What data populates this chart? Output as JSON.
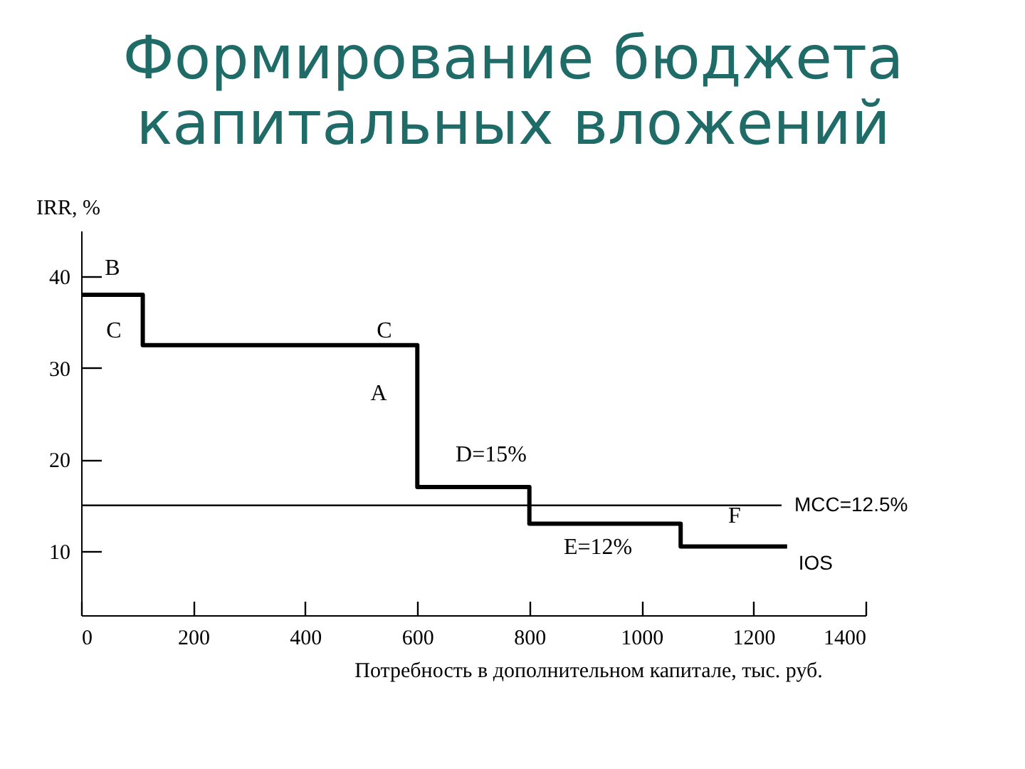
{
  "chart_data": {
    "type": "step",
    "title": "Формирование бюджета капитальных вложений",
    "xlabel": "Потребность в дополнительном капитале, тыс. руб.",
    "ylabel": "IRR, %",
    "series": [
      {
        "name": "IOS",
        "color": "#000000",
        "x": [
          0,
          110,
          600,
          800,
          1070,
          1260
        ],
        "values": [
          38,
          32.5,
          17,
          13,
          10.5,
          10.5
        ]
      },
      {
        "name": "MCC=12.5%",
        "type": "line",
        "color": "#000000",
        "x": [
          0,
          1250
        ],
        "values": [
          15,
          15
        ]
      }
    ],
    "xlim": [
      0,
      1400
    ],
    "xticks": [
      0,
      200,
      400,
      600,
      800,
      1000,
      1200,
      1400
    ],
    "ylim": [
      3,
      45
    ],
    "yticks": [
      10,
      20,
      30,
      40
    ],
    "annotations": [
      "B",
      "C",
      "C",
      "A",
      "D=15%",
      "E=12%",
      "F"
    ]
  }
}
